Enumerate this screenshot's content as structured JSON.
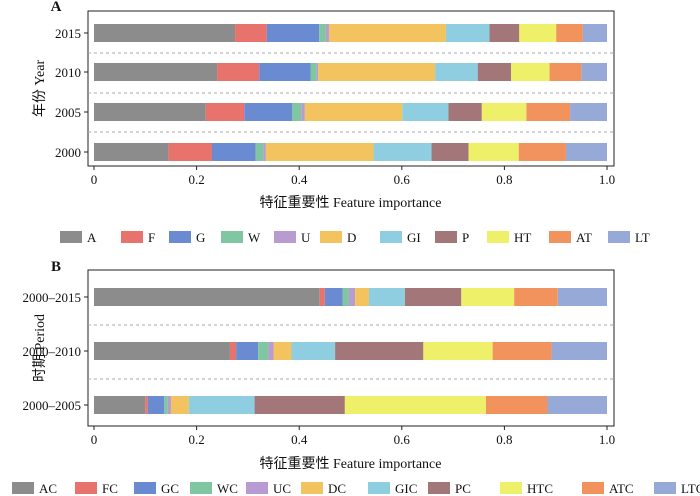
{
  "chart_data": [
    {
      "type": "bar",
      "orientation": "horizontal",
      "stacked": true,
      "panel_label": "A",
      "xlabel": "特征重要性 Feature importance",
      "ylabel": "年份 Year",
      "xlim": [
        0,
        1
      ],
      "xticks": [
        "0",
        "0.2",
        "0.4",
        "0.6",
        "0.8",
        "1.0"
      ],
      "categories": [
        "2015",
        "2010",
        "2005",
        "2000"
      ],
      "legend_position": "below",
      "series": [
        {
          "name": "A",
          "color": "#8c8c8c",
          "values": [
            0.275,
            0.24,
            0.218,
            0.145
          ]
        },
        {
          "name": "F",
          "color": "#e8736c",
          "values": [
            0.062,
            0.082,
            0.075,
            0.085
          ]
        },
        {
          "name": "G",
          "color": "#6a8bd1",
          "values": [
            0.102,
            0.1,
            0.093,
            0.085
          ]
        },
        {
          "name": "W",
          "color": "#7fc6a1",
          "values": [
            0.013,
            0.012,
            0.018,
            0.015
          ]
        },
        {
          "name": "U",
          "color": "#b79bd1",
          "values": [
            0.006,
            0.003,
            0.007,
            0.005
          ]
        },
        {
          "name": "D",
          "color": "#f2c35e",
          "values": [
            0.228,
            0.228,
            0.19,
            0.21
          ]
        },
        {
          "name": "GI",
          "color": "#8fcde0",
          "values": [
            0.085,
            0.083,
            0.09,
            0.113
          ]
        },
        {
          "name": "P",
          "color": "#a3767a",
          "values": [
            0.058,
            0.065,
            0.065,
            0.072
          ]
        },
        {
          "name": "HT",
          "color": "#eef06a",
          "values": [
            0.072,
            0.075,
            0.087,
            0.098
          ]
        },
        {
          "name": "AT",
          "color": "#f2935e",
          "values": [
            0.052,
            0.062,
            0.085,
            0.092
          ]
        },
        {
          "name": "LT",
          "color": "#97a9d6",
          "values": [
            0.047,
            0.05,
            0.072,
            0.08
          ]
        }
      ]
    },
    {
      "type": "bar",
      "orientation": "horizontal",
      "stacked": true,
      "panel_label": "B",
      "xlabel": "特征重要性 Feature importance",
      "ylabel": "时期 Period",
      "xlim": [
        0,
        1
      ],
      "xticks": [
        "0",
        "0.2",
        "0.4",
        "0.6",
        "0.8",
        "1.0"
      ],
      "categories": [
        "2000–2015",
        "2000–2010",
        "2000–2005"
      ],
      "legend_position": "below",
      "series": [
        {
          "name": "AC",
          "color": "#8c8c8c",
          "values": [
            0.44,
            0.265,
            0.1
          ]
        },
        {
          "name": "FC",
          "color": "#e8736c",
          "values": [
            0.01,
            0.012,
            0.005
          ]
        },
        {
          "name": "GC",
          "color": "#6a8bd1",
          "values": [
            0.035,
            0.043,
            0.032
          ]
        },
        {
          "name": "WC",
          "color": "#7fc6a1",
          "values": [
            0.012,
            0.02,
            0.007
          ]
        },
        {
          "name": "UC",
          "color": "#b79bd1",
          "values": [
            0.012,
            0.01,
            0.006
          ]
        },
        {
          "name": "DC",
          "color": "#f2c35e",
          "values": [
            0.027,
            0.035,
            0.035
          ]
        },
        {
          "name": "GIC",
          "color": "#8fcde0",
          "values": [
            0.07,
            0.085,
            0.128
          ]
        },
        {
          "name": "PC",
          "color": "#a3767a",
          "values": [
            0.11,
            0.172,
            0.176
          ]
        },
        {
          "name": "HTC",
          "color": "#eef06a",
          "values": [
            0.103,
            0.135,
            0.275
          ]
        },
        {
          "name": "ATC",
          "color": "#f2935e",
          "values": [
            0.085,
            0.115,
            0.12
          ]
        },
        {
          "name": "LTC",
          "color": "#97a9d6",
          "values": [
            0.096,
            0.108,
            0.116
          ]
        }
      ]
    }
  ]
}
